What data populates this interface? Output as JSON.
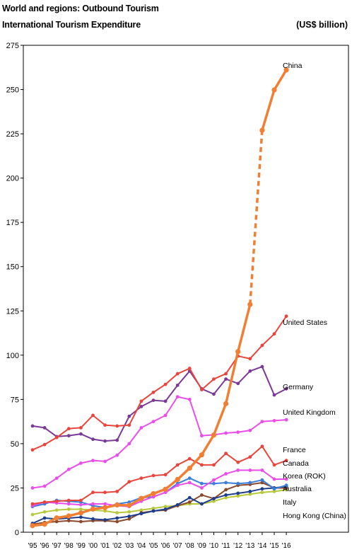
{
  "header": {
    "title": "World and regions: Outbound Tourism",
    "subtitle": "International Tourism Expenditure",
    "units": "(US$ billion)"
  },
  "chart_data": {
    "type": "line",
    "title": "International Tourism Expenditure",
    "ylabel": "",
    "xlabel": "",
    "ylim": [
      0,
      275
    ],
    "yticks": [
      0,
      25,
      50,
      75,
      100,
      125,
      150,
      175,
      200,
      225,
      250,
      275
    ],
    "grid": false,
    "legend": "labels at line ends (right)",
    "categories": [
      "'95",
      "'96",
      "'97",
      "'98",
      "'99",
      "'00",
      "'01",
      "'02",
      "'03",
      "'04",
      "'05",
      "'06",
      "'07",
      "'08",
      "'09",
      "'10",
      "'11",
      "'12",
      "'13",
      "'14",
      "'15",
      "'16"
    ],
    "series": [
      {
        "name": "China",
        "color": "#F07F33",
        "dashed_from_index": 18,
        "values": [
          3.7,
          4.5,
          8.1,
          9.2,
          10.9,
          13.1,
          13.9,
          15.4,
          15.2,
          19.1,
          21.8,
          24.3,
          29.8,
          36.2,
          43.7,
          54.9,
          72.6,
          102,
          128.6,
          227,
          249.8,
          261.1
        ]
      },
      {
        "name": "United States",
        "color": "#E8453C",
        "values": [
          46.5,
          49.5,
          53.5,
          58.5,
          59,
          66,
          60.5,
          60,
          60.5,
          74,
          79,
          83.5,
          89.5,
          92.5,
          80.5,
          86.5,
          89.5,
          99.5,
          98,
          105.5,
          112,
          122
        ]
      },
      {
        "name": "Germany",
        "color": "#7B3A96",
        "values": [
          60,
          59,
          54,
          54.5,
          55.5,
          52.5,
          51.5,
          52,
          65.5,
          71,
          74.5,
          74,
          83,
          91,
          81,
          78,
          86.5,
          84,
          91,
          93.5,
          77.5,
          81
        ]
      },
      {
        "name": "United Kingdom",
        "color": "#E94FE8",
        "values": [
          25,
          26,
          30.5,
          35.5,
          39,
          40.5,
          40,
          43.5,
          50,
          59,
          62.5,
          66,
          76.5,
          75,
          54.5,
          55,
          56,
          56.5,
          57.5,
          62.5,
          63,
          63.5
        ]
      },
      {
        "name": "France",
        "color": "#E8453C",
        "values": [
          16,
          17,
          17.5,
          18,
          18,
          22.5,
          22.5,
          23,
          28.5,
          30.5,
          32,
          32.5,
          38,
          41.5,
          38,
          38,
          44.5,
          39.5,
          42.5,
          48.5,
          38,
          40.5
        ]
      },
      {
        "name": "Canada",
        "color": "#E94FE8",
        "values": [
          15,
          17,
          16.5,
          16,
          15.5,
          16,
          16,
          15,
          14.5,
          17.5,
          20,
          22.5,
          26.5,
          28,
          25,
          29.5,
          33,
          35,
          35,
          35,
          30,
          30
        ]
      },
      {
        "name": "Korea (ROK)",
        "color": "#3B7DD8",
        "values": [
          14.5,
          16,
          18,
          17.5,
          17,
          15,
          14,
          16,
          17,
          19.5,
          20,
          22.5,
          27.5,
          30.5,
          27.5,
          27.5,
          28,
          27.5,
          28,
          29.5,
          24.5,
          26.5
        ]
      },
      {
        "name": "Australia",
        "color": "#1F3F8C",
        "values": [
          5,
          8,
          7.5,
          8,
          8.5,
          7.5,
          7,
          8,
          9,
          10.5,
          12,
          13,
          15.5,
          19.5,
          16,
          19,
          21,
          22,
          23,
          24.5,
          25,
          26
        ]
      },
      {
        "name": "Italy",
        "color": "#8B4A2B",
        "values": [
          4.5,
          5.5,
          6,
          6.5,
          6,
          6.5,
          6.5,
          6,
          7.5,
          11,
          12,
          12.5,
          15,
          17,
          21,
          19,
          24,
          26.5,
          27,
          28,
          25,
          25
        ]
      },
      {
        "name": "Hong Kong (China)",
        "color": "#B7C93A",
        "values": [
          10,
          11.5,
          12.5,
          13,
          13,
          12.5,
          12,
          11,
          11.5,
          12.5,
          13.5,
          14.5,
          15,
          16,
          16,
          17.5,
          19.5,
          20.5,
          21.5,
          22.5,
          23,
          24
        ]
      }
    ],
    "line_labels": [
      "China",
      "United States",
      "Germany",
      "United Kingdom",
      "France",
      "Canada",
      "Korea (ROK)",
      "Australia",
      "Italy",
      "Hong Kong (China)"
    ]
  }
}
